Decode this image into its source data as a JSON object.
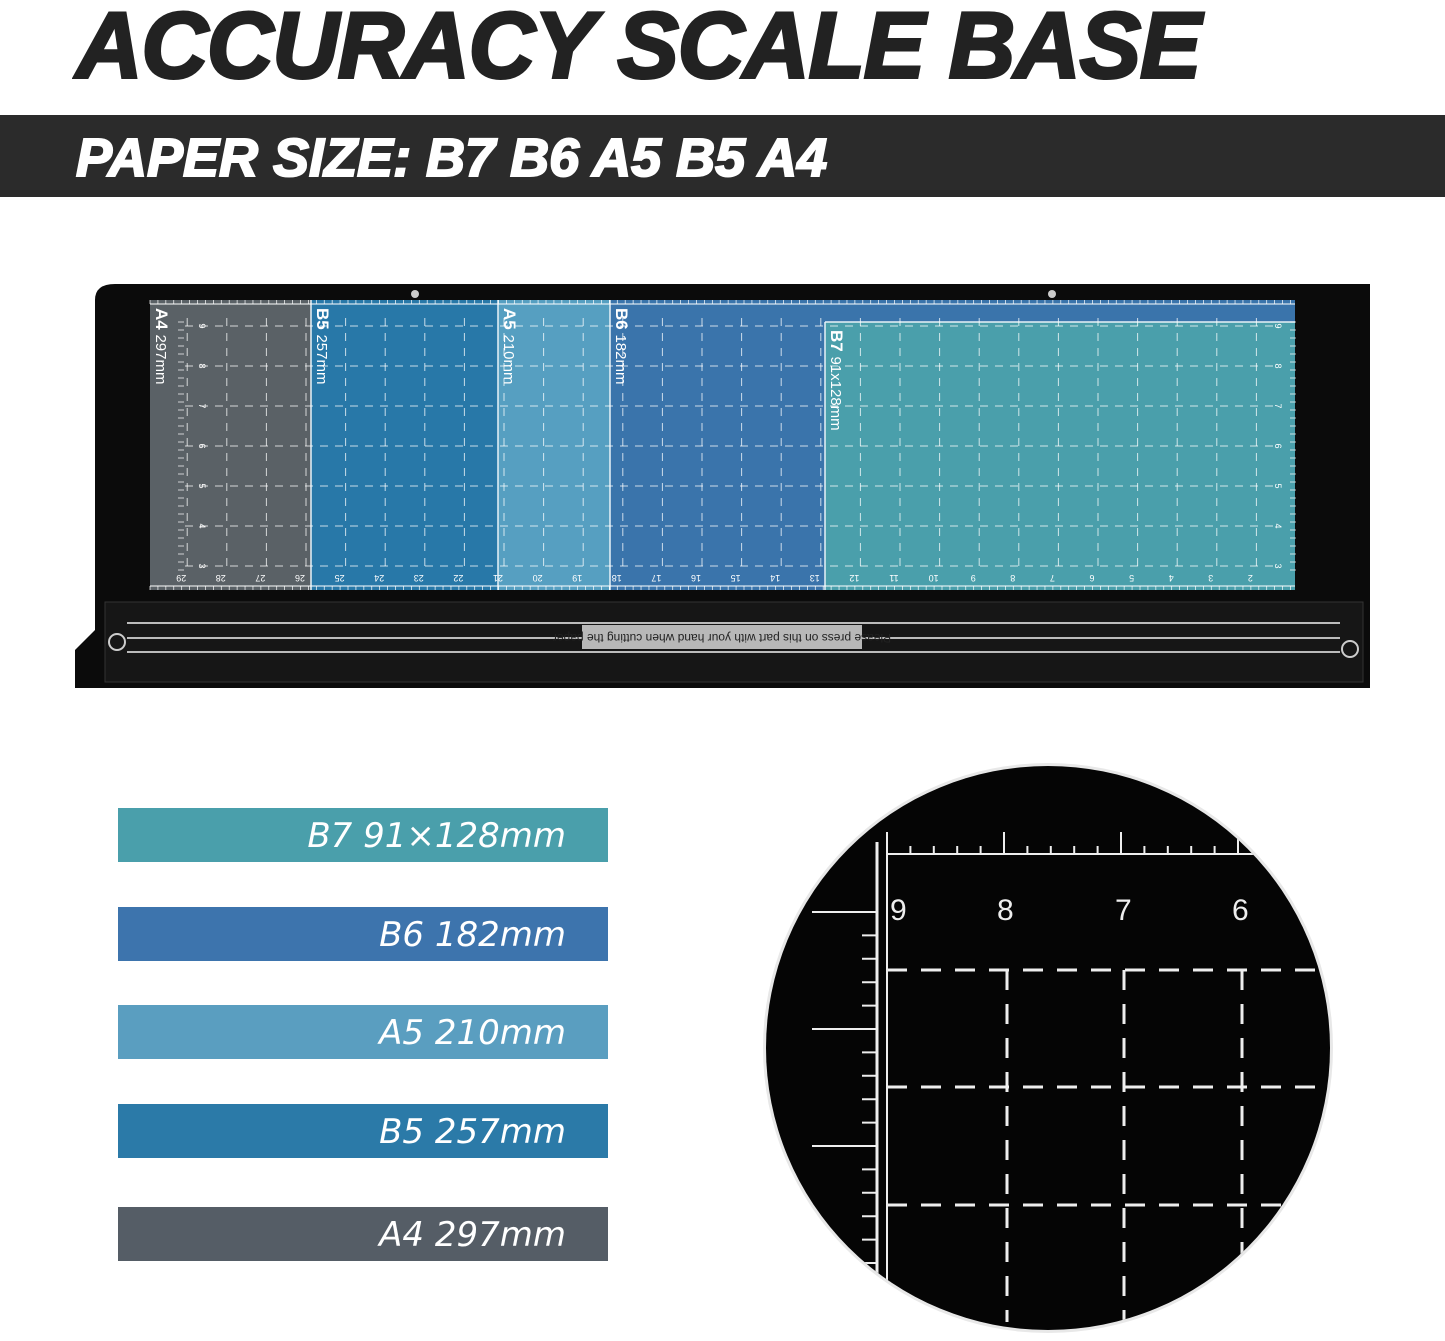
{
  "title": "ACCURACY SCALE BASE",
  "subtitle": "PAPER SIZE: B7 B6 A5 B5 A4",
  "base": {
    "sections": [
      {
        "code": "A4",
        "size": "297mm",
        "color": "#5a6166"
      },
      {
        "code": "B5",
        "size": "257mm",
        "color": "#2878a8"
      },
      {
        "code": "A5",
        "size": "210mm",
        "color": "#569fc1"
      },
      {
        "code": "B6",
        "size": "182mm",
        "color": "#3a74ab"
      },
      {
        "code": "B7",
        "size": "91x128mm",
        "color": "#4a9fab"
      }
    ],
    "bottom_scale": [
      "29",
      "28",
      "27",
      "26",
      "25",
      "24",
      "23",
      "22",
      "21",
      "20",
      "19",
      "18",
      "17",
      "16",
      "15",
      "14",
      "13",
      "12",
      "11",
      "10",
      "9",
      "8",
      "7",
      "6",
      "5",
      "4",
      "3",
      "2"
    ],
    "side_scale": [
      "9",
      "8",
      "7",
      "6",
      "5",
      "4",
      "3"
    ],
    "warning_label": "Please press on this part with your hand when cutting the paper"
  },
  "legend": [
    {
      "label": "B7 91×128mm",
      "color": "#4a9fab"
    },
    {
      "label": "B6 182mm",
      "color": "#3d74ad"
    },
    {
      "label": "A5 210mm",
      "color": "#5a9ec0"
    },
    {
      "label": "B5 257mm",
      "color": "#2b7aa8"
    },
    {
      "label": "A4 297mm",
      "color": "#555d66"
    }
  ],
  "detail": {
    "scale_labels": [
      "9",
      "8",
      "7",
      "6"
    ]
  }
}
